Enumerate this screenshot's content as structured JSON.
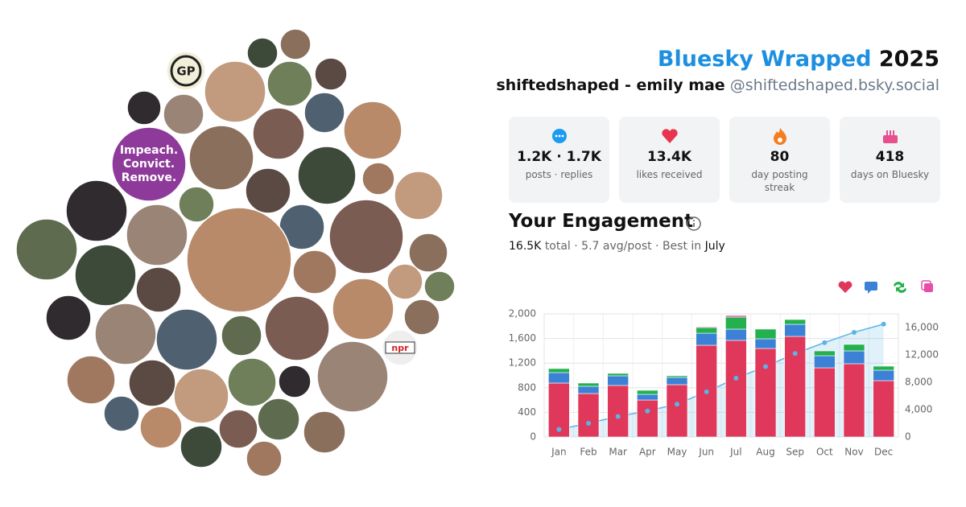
{
  "header": {
    "title": "Bluesky Wrapped",
    "year": "2025",
    "name": "shiftedshaped - emily mae",
    "handle": "@shiftedshaped.bsky.social"
  },
  "stats": [
    {
      "value": "1.2K · 1.7K",
      "label": "posts · replies"
    },
    {
      "value": "13.4K",
      "label": "likes received"
    },
    {
      "value": "80",
      "label": "day posting streak"
    },
    {
      "value": "418",
      "label": "days on Bluesky"
    }
  ],
  "engagement": {
    "title": "Your Engagement",
    "total": "16.5K",
    "total_label": "total",
    "avg": "· 5.7 avg/post · Best in",
    "best": "July"
  },
  "collage": {
    "logo": "GP",
    "sign": "Impeach. Convict. Remove.",
    "badge": "npr"
  },
  "chart_data": {
    "type": "bar",
    "stacked": true,
    "categories": [
      "Jan",
      "Feb",
      "Mar",
      "Apr",
      "May",
      "Jun",
      "Jul",
      "Aug",
      "Sep",
      "Oct",
      "Nov",
      "Dec"
    ],
    "series": [
      {
        "color": "#e0385a",
        "values": [
          876,
          706,
          837,
          601,
          850,
          1490,
          1569,
          1438,
          1634,
          1124,
          1190,
          915
        ]
      },
      {
        "color": "#3b82d6",
        "values": [
          170,
          118,
          157,
          92,
          118,
          196,
          183,
          157,
          196,
          196,
          209,
          170
        ]
      },
      {
        "color": "#22b14c",
        "values": [
          65,
          52,
          39,
          65,
          26,
          92,
          196,
          157,
          78,
          78,
          105,
          65
        ]
      },
      {
        "color": "#e64fa8",
        "values": [
          0,
          0,
          0,
          0,
          0,
          13,
          26,
          0,
          0,
          0,
          0,
          0
        ]
      },
      {
        "type": "line",
        "axis": "y2",
        "color": "#5ab4e6",
        "values": [
          1100,
          2000,
          3000,
          3800,
          4800,
          6600,
          8600,
          10300,
          12200,
          13800,
          15300,
          16500
        ]
      }
    ],
    "ylim": [
      0,
      2000
    ],
    "yticks": [
      0,
      400,
      800,
      {
        "value": 1200,
        "label": "1,200"
      },
      {
        "value": 1600,
        "label": "1,600"
      },
      {
        "value": 2000,
        "label": "2,000"
      }
    ],
    "y2lim": [
      0,
      18000
    ],
    "y2ticks": [
      0,
      {
        "value": 4000,
        "label": "4,000"
      },
      {
        "value": 8000,
        "label": "8,000"
      },
      {
        "value": 12000,
        "label": "12,000"
      },
      {
        "value": 16000,
        "label": "16,000"
      }
    ],
    "grid": true
  }
}
